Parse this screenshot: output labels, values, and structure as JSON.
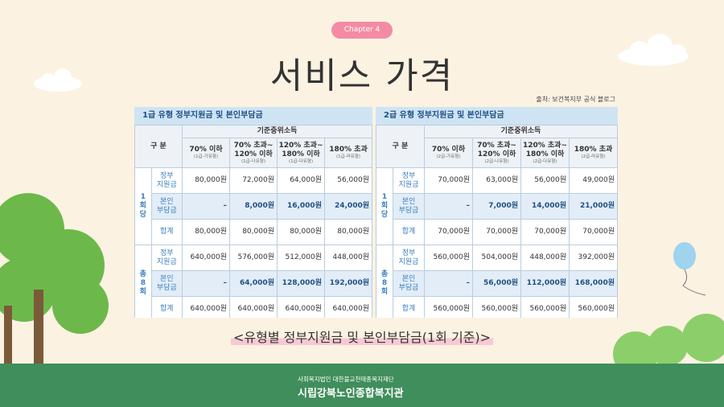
{
  "chapter": "Chapter 4",
  "title": "서비스 가격",
  "source": "출처: 보건복지부 공식 블로그",
  "tables": [
    {
      "title": "1급 유형 정부지원금 및 본인부담금",
      "group_header": "구 분",
      "income_header": "기준중위소득",
      "columns": [
        {
          "label": "70% 이하",
          "type": "(1급-가유형)"
        },
        {
          "label": "70% 초과~\n120% 이하",
          "type": "(1급-나유형)"
        },
        {
          "label": "120% 초과~\n180% 이하",
          "type": "(1급-다유형)"
        },
        {
          "label": "180% 초과",
          "type": "(1급-라유형)"
        }
      ],
      "sections": [
        {
          "label": "1회당",
          "rows": [
            {
              "label": "정부\n지원금",
              "cells": [
                "80,000원",
                "72,000원",
                "64,000원",
                "56,000원"
              ]
            },
            {
              "label": "본인\n부담금",
              "cells": [
                "–",
                "8,000원",
                "16,000원",
                "24,000원"
              ]
            },
            {
              "label": "합계",
              "cells": [
                "80,000원",
                "80,000원",
                "80,000원",
                "80,000원"
              ]
            }
          ]
        },
        {
          "label": "총8회",
          "rows": [
            {
              "label": "정부\n지원금",
              "cells": [
                "640,000원",
                "576,000원",
                "512,000원",
                "448,000원"
              ]
            },
            {
              "label": "본인\n부담금",
              "cells": [
                "–",
                "64,000원",
                "128,000원",
                "192,000원"
              ]
            },
            {
              "label": "합계",
              "cells": [
                "640,000원",
                "640,000원",
                "640,000원",
                "640,000원"
              ]
            }
          ]
        }
      ]
    },
    {
      "title": "2급 유형 정부지원금 및 본인부담금",
      "group_header": "구 분",
      "income_header": "기준중위소득",
      "columns": [
        {
          "label": "70% 이하",
          "type": "(2급-가유형)"
        },
        {
          "label": "70% 초과~\n120% 이하",
          "type": "(2급-나유형)"
        },
        {
          "label": "120% 초과~\n180% 이하",
          "type": "(2급-다유형)"
        },
        {
          "label": "180% 초과",
          "type": "(2급-라유형)"
        }
      ],
      "sections": [
        {
          "label": "1회당",
          "rows": [
            {
              "label": "정부\n지원금",
              "cells": [
                "70,000원",
                "63,000원",
                "56,000원",
                "49,000원"
              ]
            },
            {
              "label": "본인\n부담금",
              "cells": [
                "–",
                "7,000원",
                "14,000원",
                "21,000원"
              ]
            },
            {
              "label": "합계",
              "cells": [
                "70,000원",
                "70,000원",
                "70,000원",
                "70,000원"
              ]
            }
          ]
        },
        {
          "label": "총8회",
          "rows": [
            {
              "label": "정부\n지원금",
              "cells": [
                "560,000원",
                "504,000원",
                "448,000원",
                "392,000원"
              ]
            },
            {
              "label": "본인\n부담금",
              "cells": [
                "–",
                "56,000원",
                "112,000원",
                "168,000원"
              ]
            },
            {
              "label": "합계",
              "cells": [
                "560,000원",
                "560,000원",
                "560,000원",
                "560,000원"
              ]
            }
          ]
        }
      ]
    }
  ],
  "caption": "<유형별 정부지원금 및 본인부담금(1회 기준)>",
  "footer": {
    "foundation": "사회복지법인 대한불교천태종복지재단",
    "org": "시립강북노인종합복지관"
  }
}
